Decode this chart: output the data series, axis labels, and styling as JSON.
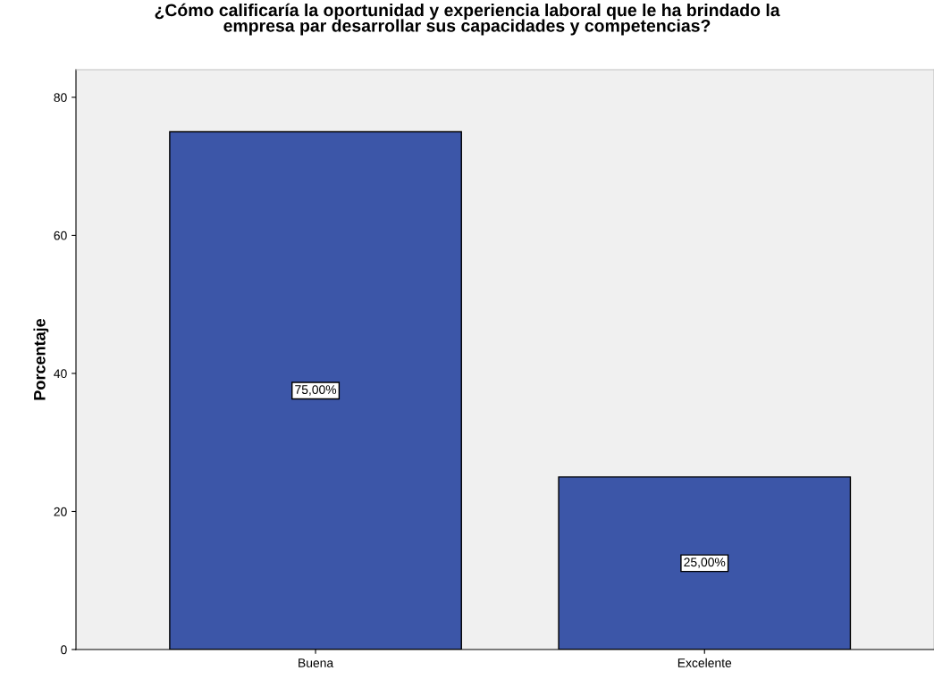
{
  "chart_data": {
    "type": "bar",
    "title": "¿Cómo calificaría la oportunidad y experiencia laboral que le ha brindado la\nempresa par desarrollar sus capacidades y competencias?",
    "ylabel": "Porcentaje",
    "categories": [
      "Buena",
      "Excelente"
    ],
    "values": [
      75,
      25
    ],
    "color": "#3c56a8",
    "value_labels": [
      "75,00%",
      "25,00%"
    ],
    "ylim": [
      0,
      84
    ],
    "yticks": [
      0,
      20,
      40,
      60,
      80
    ],
    "grid": false,
    "legend": false
  }
}
